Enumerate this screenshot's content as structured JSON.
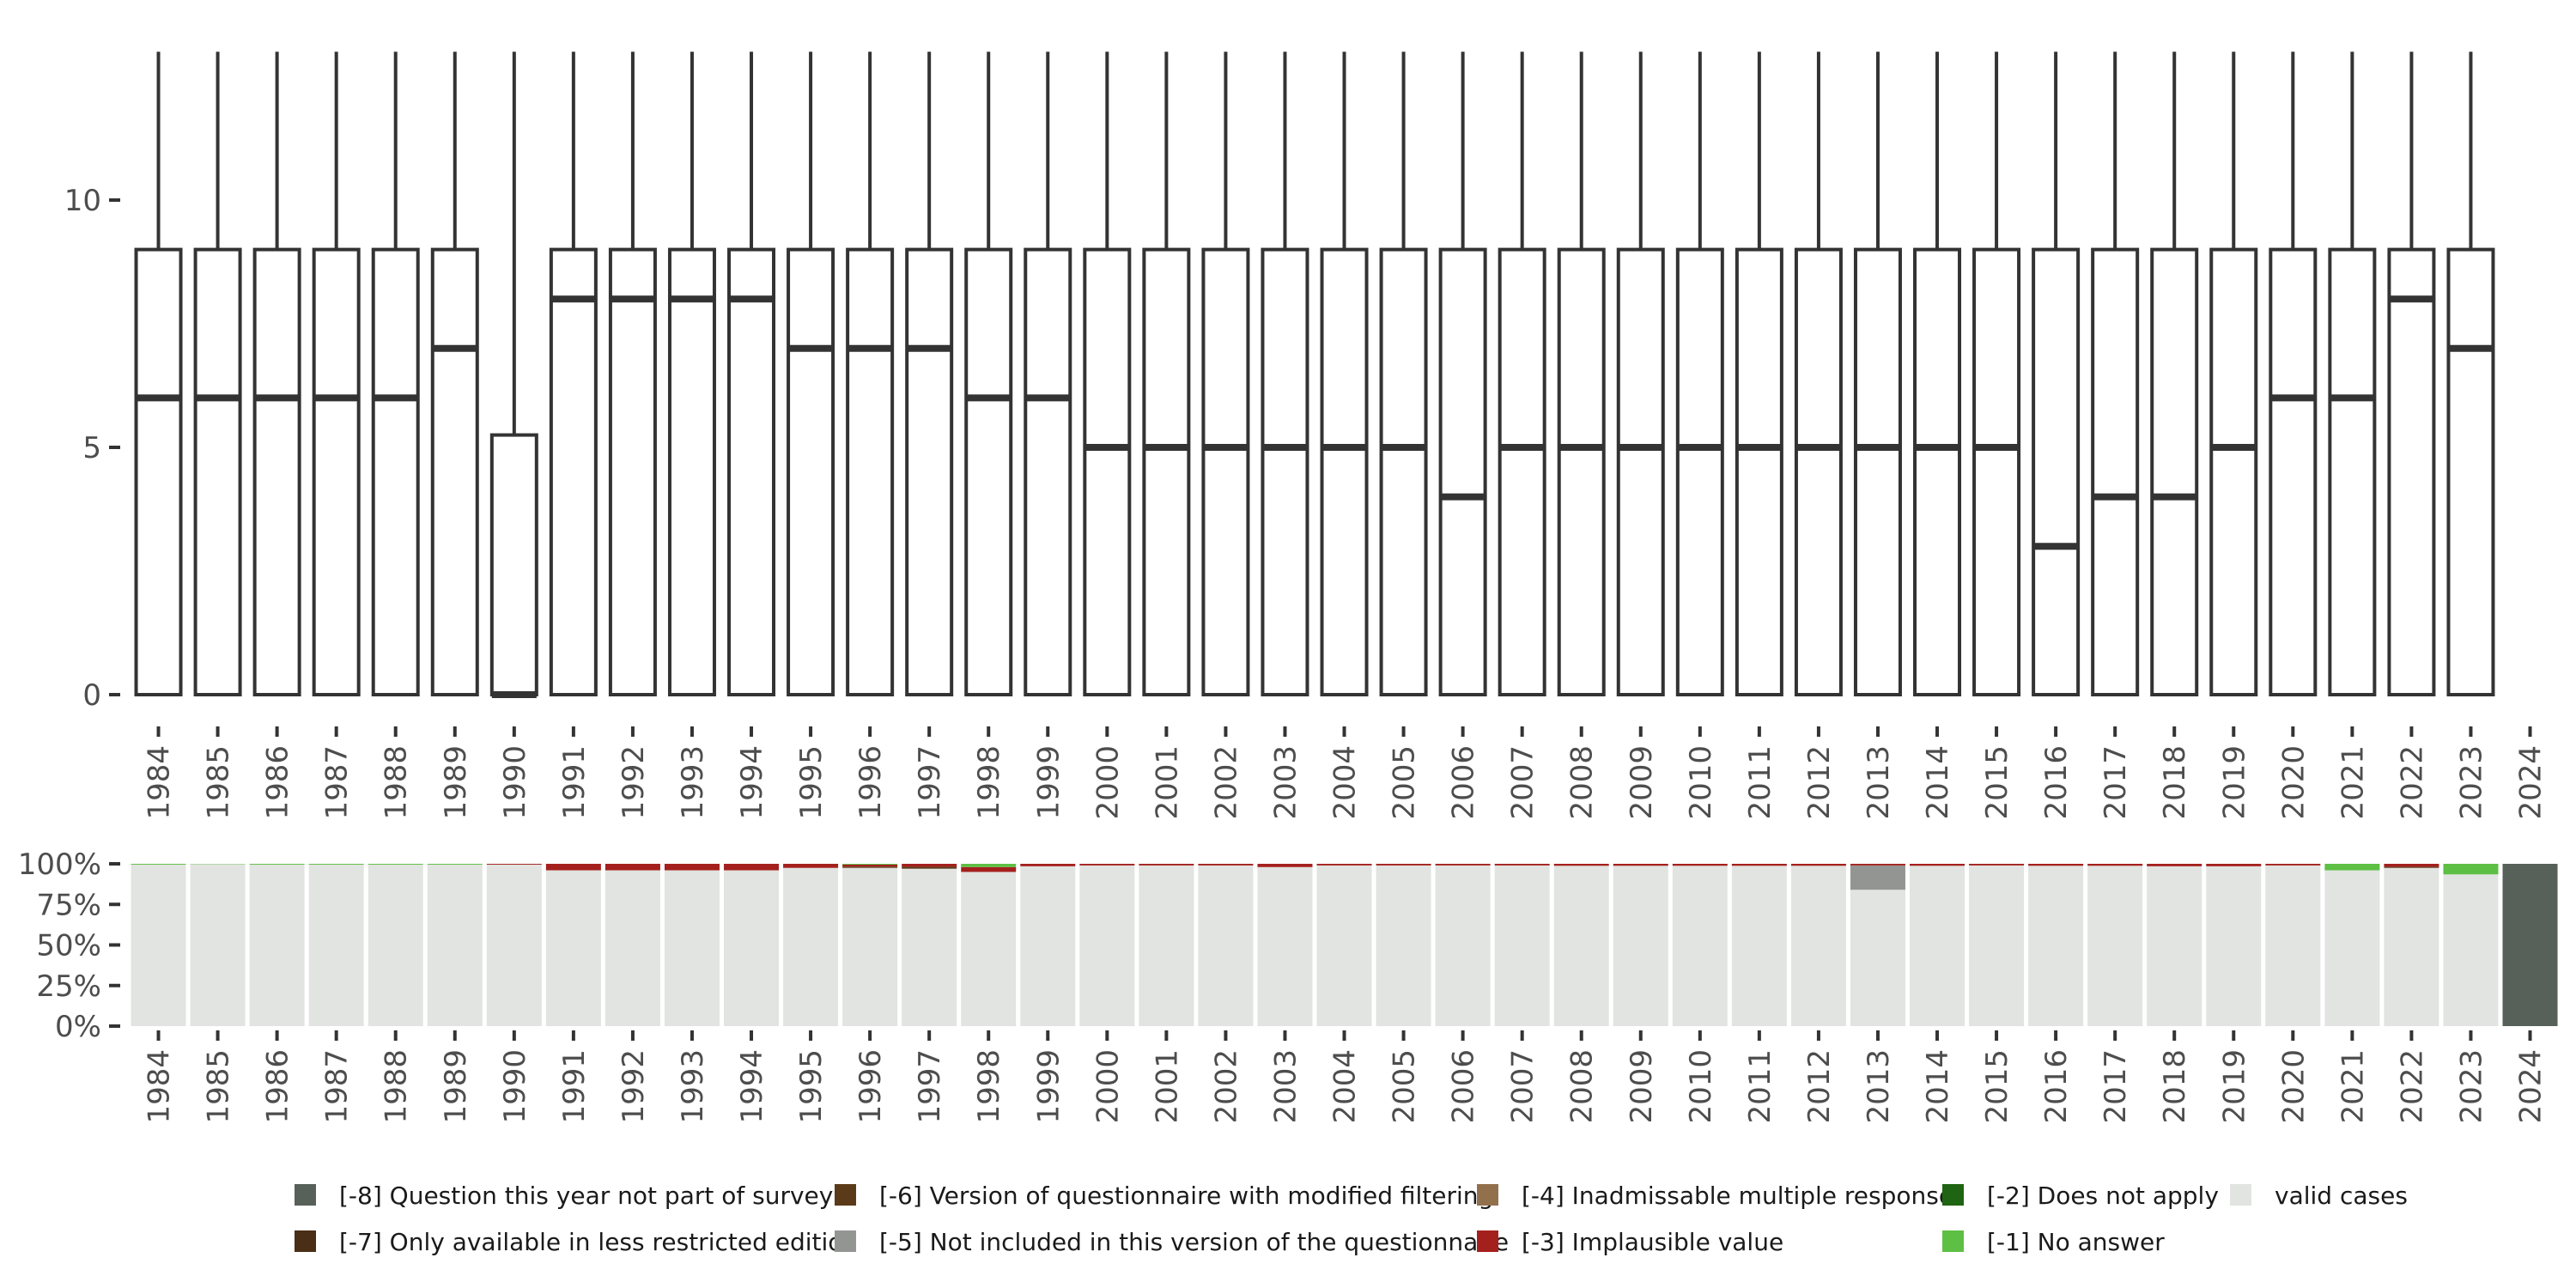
{
  "chart_data": [
    {
      "type": "boxplot",
      "title": "",
      "xlabel": "",
      "ylabel": "",
      "ylim": [
        0,
        12.8
      ],
      "yticks": [
        0,
        5,
        10
      ],
      "whisker_upper": 13,
      "categories": [
        "1984",
        "1985",
        "1986",
        "1987",
        "1988",
        "1989",
        "1990",
        "1991",
        "1992",
        "1993",
        "1994",
        "1995",
        "1996",
        "1997",
        "1998",
        "1999",
        "2000",
        "2001",
        "2002",
        "2003",
        "2004",
        "2005",
        "2006",
        "2007",
        "2008",
        "2009",
        "2010",
        "2011",
        "2012",
        "2013",
        "2014",
        "2015",
        "2016",
        "2017",
        "2018",
        "2019",
        "2020",
        "2021",
        "2022",
        "2023",
        "2024"
      ],
      "boxes": [
        {
          "year": "1984",
          "q1": 0,
          "median": 6,
          "q3": 9
        },
        {
          "year": "1985",
          "q1": 0,
          "median": 6,
          "q3": 9
        },
        {
          "year": "1986",
          "q1": 0,
          "median": 6,
          "q3": 9
        },
        {
          "year": "1987",
          "q1": 0,
          "median": 6,
          "q3": 9
        },
        {
          "year": "1988",
          "q1": 0,
          "median": 6,
          "q3": 9
        },
        {
          "year": "1989",
          "q1": 0,
          "median": 7,
          "q3": 9
        },
        {
          "year": "1990",
          "q1": 0,
          "median": 0,
          "q3": 5.25
        },
        {
          "year": "1991",
          "q1": 0,
          "median": 8,
          "q3": 9
        },
        {
          "year": "1992",
          "q1": 0,
          "median": 8,
          "q3": 9
        },
        {
          "year": "1993",
          "q1": 0,
          "median": 8,
          "q3": 9
        },
        {
          "year": "1994",
          "q1": 0,
          "median": 8,
          "q3": 9
        },
        {
          "year": "1995",
          "q1": 0,
          "median": 7,
          "q3": 9
        },
        {
          "year": "1996",
          "q1": 0,
          "median": 7,
          "q3": 9
        },
        {
          "year": "1997",
          "q1": 0,
          "median": 7,
          "q3": 9
        },
        {
          "year": "1998",
          "q1": 0,
          "median": 6,
          "q3": 9
        },
        {
          "year": "1999",
          "q1": 0,
          "median": 6,
          "q3": 9
        },
        {
          "year": "2000",
          "q1": 0,
          "median": 5,
          "q3": 9
        },
        {
          "year": "2001",
          "q1": 0,
          "median": 5,
          "q3": 9
        },
        {
          "year": "2002",
          "q1": 0,
          "median": 5,
          "q3": 9
        },
        {
          "year": "2003",
          "q1": 0,
          "median": 5,
          "q3": 9
        },
        {
          "year": "2004",
          "q1": 0,
          "median": 5,
          "q3": 9
        },
        {
          "year": "2005",
          "q1": 0,
          "median": 5,
          "q3": 9
        },
        {
          "year": "2006",
          "q1": 0,
          "median": 4,
          "q3": 9
        },
        {
          "year": "2007",
          "q1": 0,
          "median": 5,
          "q3": 9
        },
        {
          "year": "2008",
          "q1": 0,
          "median": 5,
          "q3": 9
        },
        {
          "year": "2009",
          "q1": 0,
          "median": 5,
          "q3": 9
        },
        {
          "year": "2010",
          "q1": 0,
          "median": 5,
          "q3": 9
        },
        {
          "year": "2011",
          "q1": 0,
          "median": 5,
          "q3": 9
        },
        {
          "year": "2012",
          "q1": 0,
          "median": 5,
          "q3": 9
        },
        {
          "year": "2013",
          "q1": 0,
          "median": 5,
          "q3": 9
        },
        {
          "year": "2014",
          "q1": 0,
          "median": 5,
          "q3": 9
        },
        {
          "year": "2015",
          "q1": 0,
          "median": 5,
          "q3": 9
        },
        {
          "year": "2016",
          "q1": 0,
          "median": 3,
          "q3": 9
        },
        {
          "year": "2017",
          "q1": 0,
          "median": 4,
          "q3": 9
        },
        {
          "year": "2018",
          "q1": 0,
          "median": 4,
          "q3": 9
        },
        {
          "year": "2019",
          "q1": 0,
          "median": 5,
          "q3": 9
        },
        {
          "year": "2020",
          "q1": 0,
          "median": 6,
          "q3": 9
        },
        {
          "year": "2021",
          "q1": 0,
          "median": 6,
          "q3": 9
        },
        {
          "year": "2022",
          "q1": 0,
          "median": 8,
          "q3": 9
        },
        {
          "year": "2023",
          "q1": 0,
          "median": 7,
          "q3": 9
        }
      ]
    },
    {
      "type": "stacked_bar",
      "title": "",
      "xlabel": "",
      "ylabel": "",
      "ylim": [
        0,
        100
      ],
      "yticks": [
        "0%",
        "25%",
        "50%",
        "75%",
        "100%"
      ],
      "categories": [
        "1984",
        "1985",
        "1986",
        "1987",
        "1988",
        "1989",
        "1990",
        "1991",
        "1992",
        "1993",
        "1994",
        "1995",
        "1996",
        "1997",
        "1998",
        "1999",
        "2000",
        "2001",
        "2002",
        "2003",
        "2004",
        "2005",
        "2006",
        "2007",
        "2008",
        "2009",
        "2010",
        "2011",
        "2012",
        "2013",
        "2014",
        "2015",
        "2016",
        "2017",
        "2018",
        "2019",
        "2020",
        "2021",
        "2022",
        "2023",
        "2024"
      ],
      "series_order_bottom_to_top": [
        "valid",
        "m8",
        "m7",
        "m6",
        "m5",
        "m4",
        "m3",
        "m2",
        "m1"
      ],
      "series": [
        {
          "key": "valid",
          "name": "valid cases",
          "color": "#e1e4e0",
          "values": [
            99.5,
            99.8,
            99.5,
            99.5,
            99.5,
            99.5,
            99.5,
            96,
            96,
            96,
            96,
            97.5,
            97.5,
            97,
            95,
            98.5,
            99,
            99,
            99,
            98,
            99,
            99,
            99,
            99,
            98.8,
            98.8,
            98.8,
            98.8,
            98.8,
            84,
            98.8,
            99,
            98.8,
            98.8,
            98.5,
            98.5,
            99,
            96,
            97.5,
            93.5,
            0
          ]
        },
        {
          "key": "m8",
          "name": "[-8] Question this year not part of survey",
          "color": "#576059",
          "values": [
            0,
            0,
            0,
            0,
            0,
            0,
            0,
            0,
            0,
            0,
            0,
            0,
            0,
            0,
            0,
            0,
            0,
            0,
            0,
            0,
            0,
            0,
            0,
            0,
            0,
            0,
            0,
            0,
            0,
            0,
            0,
            0,
            0,
            0,
            0,
            0,
            0,
            0,
            0,
            0,
            100
          ]
        },
        {
          "key": "m7",
          "name": "[-7] Only available in less restricted edition",
          "color": "#4a2e16",
          "values": [
            0,
            0,
            0,
            0,
            0,
            0,
            0,
            0,
            0,
            0,
            0,
            0,
            0,
            0,
            0,
            0,
            0,
            0,
            0,
            0,
            0,
            0,
            0,
            0,
            0,
            0,
            0,
            0,
            0,
            0,
            0,
            0,
            0,
            0,
            0,
            0,
            0,
            0,
            0,
            0,
            0
          ]
        },
        {
          "key": "m6",
          "name": "[-6] Version of questionnaire with modified filtering",
          "color": "#5b3a1a",
          "values": [
            0,
            0,
            0,
            0,
            0,
            0,
            0,
            0,
            0,
            0,
            0,
            0,
            0.8,
            1.2,
            0,
            0,
            0,
            0,
            0,
            0,
            0,
            0,
            0,
            0,
            0,
            0,
            0,
            0,
            0,
            0,
            0,
            0,
            0,
            0,
            0,
            0,
            0,
            0,
            0.7,
            0,
            0
          ]
        },
        {
          "key": "m5",
          "name": "[-5] Not included in this version of the questionnaire",
          "color": "#939592",
          "values": [
            0,
            0,
            0,
            0,
            0,
            0,
            0,
            0,
            0,
            0,
            0,
            0,
            0,
            0,
            0,
            0,
            0,
            0,
            0,
            0,
            0,
            0,
            0,
            0,
            0,
            0,
            0,
            0,
            0,
            15,
            0,
            0,
            0,
            0,
            0,
            0,
            0,
            0,
            0,
            0,
            0
          ]
        },
        {
          "key": "m4",
          "name": "[-4] Inadmissable multiple response",
          "color": "#93704c",
          "values": [
            0,
            0,
            0,
            0,
            0,
            0,
            0,
            0,
            0,
            0,
            0,
            0,
            0,
            0,
            0,
            0,
            0,
            0,
            0,
            0,
            0,
            0,
            0,
            0,
            0,
            0,
            0,
            0,
            0,
            0,
            0,
            0,
            0,
            0,
            0,
            0,
            0,
            0,
            0,
            0,
            0
          ]
        },
        {
          "key": "m3",
          "name": "[-3] Implausible value",
          "color": "#a4201d",
          "values": [
            0,
            0,
            0,
            0,
            0,
            0,
            0.5,
            4,
            4,
            4,
            4,
            2.5,
            1.2,
            1.8,
            3,
            1.5,
            1,
            1,
            1,
            2,
            1,
            1,
            1,
            1,
            1.2,
            1.2,
            1.2,
            1.2,
            1.2,
            1,
            1.2,
            1,
            1.2,
            1.2,
            1.5,
            1.5,
            1,
            0,
            1.8,
            0,
            0
          ]
        },
        {
          "key": "m2",
          "name": "[-2] Does not apply",
          "color": "#1f6412",
          "values": [
            0,
            0,
            0,
            0,
            0,
            0,
            0,
            0,
            0,
            0,
            0,
            0,
            0,
            0,
            0,
            0,
            0,
            0,
            0,
            0,
            0,
            0,
            0,
            0,
            0,
            0,
            0,
            0,
            0,
            0,
            0,
            0,
            0,
            0,
            0,
            0,
            0,
            0,
            0,
            0,
            0
          ]
        },
        {
          "key": "m1",
          "name": "[-1] No answer",
          "color": "#5dbf44",
          "values": [
            0.5,
            0.2,
            0.5,
            0.5,
            0.5,
            0.5,
            0,
            0,
            0,
            0,
            0,
            0,
            0.5,
            0,
            2,
            0,
            0,
            0,
            0,
            0,
            0,
            0,
            0,
            0,
            0,
            0,
            0,
            0,
            0,
            0,
            0,
            0,
            0,
            0,
            0,
            0,
            0,
            4,
            0,
            6.5,
            0
          ]
        }
      ]
    }
  ],
  "legend": {
    "placement": "bottom",
    "items": [
      {
        "label": "[-8] Question this year not part of survey",
        "color": "#576059"
      },
      {
        "label": "[-7] Only available in less restricted edition",
        "color": "#4a2e16"
      },
      {
        "label": "[-6] Version of questionnaire with modified filtering",
        "color": "#5b3a1a"
      },
      {
        "label": "[-5] Not included in this version of the questionnaire",
        "color": "#939592"
      },
      {
        "label": "[-4] Inadmissable multiple response",
        "color": "#93704c"
      },
      {
        "label": "[-3] Implausible value",
        "color": "#a4201d"
      },
      {
        "label": "[-2] Does not apply",
        "color": "#1f6412"
      },
      {
        "label": "[-1] No answer",
        "color": "#5dbf44"
      },
      {
        "label": "valid cases",
        "color": "#e1e4e0"
      }
    ]
  }
}
